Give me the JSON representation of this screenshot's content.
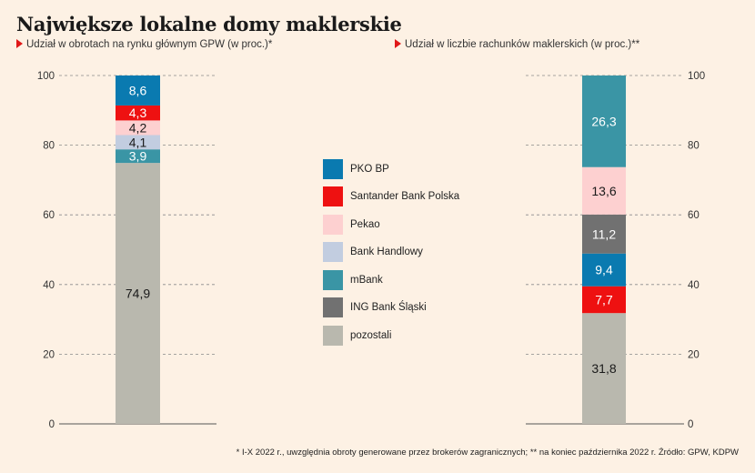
{
  "title": "Największe lokalne domy maklerskie",
  "subtitles": {
    "left": "Udział w obrotach na rynku głównym GPW (w proc.)*",
    "right": "Udział w liczbie rachunków maklerskich (w proc.)**"
  },
  "legend": [
    {
      "name": "PKO BP",
      "color": "#0a7ab0"
    },
    {
      "name": "Santander Bank Polska",
      "color": "#ee1111"
    },
    {
      "name": "Pekao",
      "color": "#fdd0d0"
    },
    {
      "name": "Bank Handlowy",
      "color": "#c2cde0"
    },
    {
      "name": "mBank",
      "color": "#3a95a5"
    },
    {
      "name": "ING Bank Śląski",
      "color": "#717171"
    },
    {
      "name": "pozostali",
      "color": "#b9b8ae"
    }
  ],
  "footnote": "* I-X 2022 r., uwzględnia obroty generowane przez brokerów zagranicznych; ** na koniec października 2022 r. Źródło: GPW, KDPW",
  "chart_data": [
    {
      "type": "bar",
      "stacked": true,
      "ylim": [
        0,
        100
      ],
      "yticks": [
        "0",
        "20",
        "40",
        "60",
        "80",
        "100"
      ],
      "y_axis_side": "left",
      "grid": true,
      "segments": [
        {
          "name": "pozostali",
          "value": 74.9,
          "label": "74,9",
          "color": "#b9b8ae",
          "text_color": "#1a1a1a"
        },
        {
          "name": "mBank",
          "value": 3.9,
          "label": "3,9",
          "color": "#3a95a5",
          "text_color": "#ffffff"
        },
        {
          "name": "Bank Handlowy",
          "value": 4.1,
          "label": "4,1",
          "color": "#c2cde0",
          "text_color": "#1a1a1a"
        },
        {
          "name": "Pekao",
          "value": 4.2,
          "label": "4,2",
          "color": "#fdd0d0",
          "text_color": "#1a1a1a"
        },
        {
          "name": "Santander Bank Polska",
          "value": 4.3,
          "label": "4,3",
          "color": "#ee1111",
          "text_color": "#ffffff"
        },
        {
          "name": "PKO BP",
          "value": 8.6,
          "label": "8,6",
          "color": "#0a7ab0",
          "text_color": "#ffffff"
        }
      ]
    },
    {
      "type": "bar",
      "stacked": true,
      "ylim": [
        0,
        100
      ],
      "yticks": [
        "0",
        "20",
        "40",
        "60",
        "80",
        "100"
      ],
      "y_axis_side": "right",
      "grid": true,
      "segments": [
        {
          "name": "pozostali",
          "value": 31.8,
          "label": "31,8",
          "color": "#b9b8ae",
          "text_color": "#1a1a1a"
        },
        {
          "name": "Santander Bank Polska",
          "value": 7.7,
          "label": "7,7",
          "color": "#ee1111",
          "text_color": "#ffffff"
        },
        {
          "name": "PKO BP",
          "value": 9.4,
          "label": "9,4",
          "color": "#0a7ab0",
          "text_color": "#ffffff"
        },
        {
          "name": "ING Bank Śląski",
          "value": 11.2,
          "label": "11,2",
          "color": "#717171",
          "text_color": "#ffffff"
        },
        {
          "name": "Pekao",
          "value": 13.6,
          "label": "13,6",
          "color": "#fdd0d0",
          "text_color": "#1a1a1a"
        },
        {
          "name": "mBank",
          "value": 26.3,
          "label": "26,3",
          "color": "#3a95a5",
          "text_color": "#ffffff"
        }
      ]
    }
  ]
}
